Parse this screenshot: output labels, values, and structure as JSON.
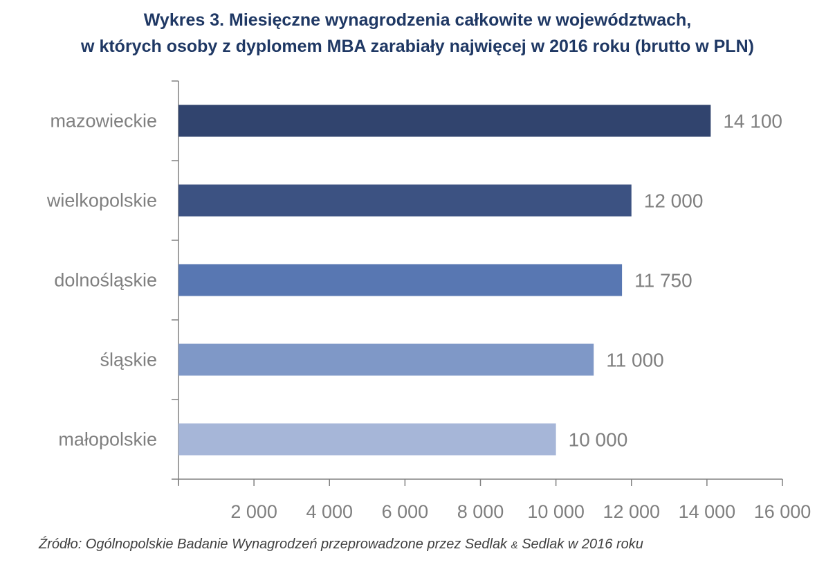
{
  "chart_data": {
    "type": "bar",
    "orientation": "horizontal",
    "title_lines": [
      "Wykres 3. Miesięczne wynagrodzenia całkowite w województwach,",
      "w których osoby z dyplomem MBA zarabiały najwięcej w 2016 roku (brutto w PLN)"
    ],
    "categories": [
      "mazowieckie",
      "wielkopolskie",
      "dolnośląskie",
      "śląskie",
      "małopolskie"
    ],
    "values": [
      14100,
      12000,
      11750,
      11000,
      10000
    ],
    "data_labels": [
      "14 100",
      "12 000",
      "11 750",
      "11 000",
      "10 000"
    ],
    "bar_colors": [
      "#31446e",
      "#3c5282",
      "#5877b2",
      "#7f98c7",
      "#a6b6d8"
    ],
    "xlim": [
      0,
      16000
    ],
    "x_ticks": [
      2000,
      4000,
      6000,
      8000,
      10000,
      12000,
      14000,
      16000
    ],
    "x_tick_labels": [
      "2 000",
      "4 000",
      "6 000",
      "8 000",
      "10 000",
      "12 000",
      "14 000",
      "16 000"
    ],
    "xlabel": "",
    "ylabel": "",
    "grid": false,
    "legend": "none"
  },
  "source": {
    "prefix": "Źródło: Ogólnopolskie Badanie Wynagrodzeń przeprowadzone przez Sedlak ",
    "amp": "&",
    "suffix": " Sedlak w 2016 roku"
  },
  "colors": {
    "title": "#1f3864",
    "label_text": "#7f7f7f",
    "axis": "#808080"
  }
}
